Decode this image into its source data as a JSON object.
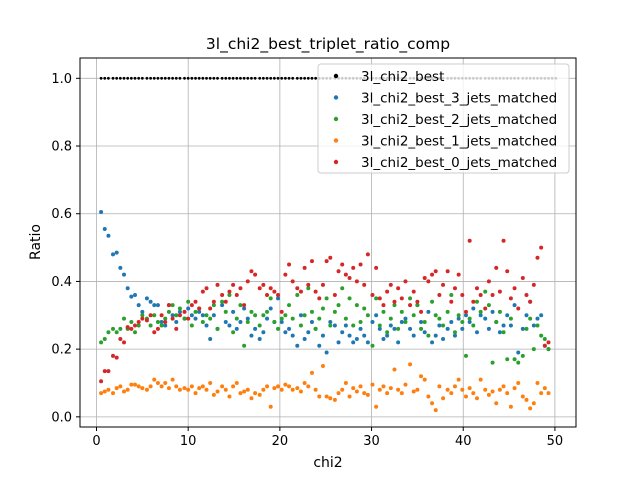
{
  "chart_data": {
    "type": "scatter",
    "title": "3l_chi2_best_triplet_ratio_comp",
    "xlabel": "chi2",
    "ylabel": "Ratio",
    "xlim": [
      -1.8,
      52.3
    ],
    "ylim": [
      -0.03,
      1.06
    ],
    "xticks": [
      "0",
      "10",
      "20",
      "30",
      "40",
      "50"
    ],
    "xtick_values": [
      0,
      10,
      20,
      30,
      40,
      50
    ],
    "yticks": [
      "0.0",
      "0.2",
      "0.4",
      "0.6",
      "0.8",
      "1.0"
    ],
    "ytick_values": [
      0.0,
      0.2,
      0.4,
      0.6,
      0.8,
      1.0
    ],
    "grid": true,
    "legend_position": "top-right",
    "x": [
      0.5,
      0.9,
      1.3,
      1.8,
      2.2,
      2.6,
      3.0,
      3.4,
      3.8,
      4.2,
      4.6,
      5.0,
      5.5,
      5.9,
      6.3,
      6.7,
      7.1,
      7.5,
      7.9,
      8.3,
      8.7,
      9.1,
      9.6,
      10.0,
      10.4,
      10.8,
      11.2,
      11.6,
      12.0,
      12.4,
      12.8,
      13.2,
      13.7,
      14.1,
      14.5,
      14.9,
      15.3,
      15.7,
      16.1,
      16.5,
      16.9,
      17.3,
      17.8,
      18.2,
      18.6,
      19.0,
      19.4,
      19.8,
      20.2,
      20.6,
      21.0,
      21.4,
      21.9,
      22.3,
      22.7,
      23.1,
      23.5,
      23.9,
      24.3,
      24.7,
      25.1,
      25.5,
      26.0,
      26.4,
      26.8,
      27.2,
      27.6,
      28.0,
      28.4,
      28.8,
      29.2,
      29.6,
      30.1,
      30.5,
      30.9,
      31.3,
      31.7,
      32.1,
      32.5,
      32.9,
      33.3,
      33.7,
      34.2,
      34.6,
      35.0,
      35.4,
      35.8,
      36.2,
      36.6,
      37.0,
      37.4,
      37.8,
      38.3,
      38.7,
      39.1,
      39.5,
      39.9,
      40.3,
      40.7,
      41.1,
      41.5,
      41.9,
      42.4,
      42.8,
      43.2,
      43.6,
      44.0,
      44.4,
      44.8,
      45.2,
      45.6,
      46.0,
      46.5,
      46.9,
      47.3,
      47.7,
      48.1,
      48.5,
      48.9,
      49.3,
      49.7,
      50.1
    ],
    "series": [
      {
        "name": "3l_chi2_best",
        "color": "#000000",
        "values": [
          1.0,
          1.0,
          1.0,
          1.0,
          1.0,
          1.0,
          1.0,
          1.0,
          1.0,
          1.0,
          1.0,
          1.0,
          1.0,
          1.0,
          1.0,
          1.0,
          1.0,
          1.0,
          1.0,
          1.0,
          1.0,
          1.0,
          1.0,
          1.0,
          1.0,
          1.0,
          1.0,
          1.0,
          1.0,
          1.0,
          1.0,
          1.0,
          1.0,
          1.0,
          1.0,
          1.0,
          1.0,
          1.0,
          1.0,
          1.0,
          1.0,
          1.0,
          1.0,
          1.0,
          1.0,
          1.0,
          1.0,
          1.0,
          1.0,
          1.0,
          1.0,
          1.0,
          1.0,
          1.0,
          1.0,
          1.0,
          1.0,
          1.0,
          1.0,
          1.0,
          1.0,
          1.0,
          1.0,
          1.0,
          1.0,
          1.0,
          1.0,
          1.0,
          1.0,
          1.0,
          1.0,
          1.0,
          1.0,
          1.0,
          1.0,
          1.0,
          1.0,
          1.0,
          1.0,
          1.0,
          1.0,
          1.0,
          1.0,
          1.0,
          1.0,
          1.0,
          1.0,
          1.0,
          1.0,
          1.0,
          1.0,
          1.0,
          1.0,
          1.0,
          1.0,
          1.0,
          1.0,
          1.0,
          1.0,
          1.0,
          1.0,
          1.0,
          1.0,
          1.0,
          1.0,
          1.0,
          1.0,
          1.0,
          1.0,
          1.0,
          1.0,
          1.0,
          1.0,
          1.0,
          1.0,
          1.0,
          1.0,
          1.0,
          1.0,
          1.0,
          1.0,
          1.0
        ]
      },
      {
        "name": "3l_chi2_best_3_jets_matched",
        "color": "#1f77b4",
        "values": [
          0.605,
          0.555,
          0.535,
          0.48,
          0.485,
          0.44,
          0.42,
          0.38,
          0.355,
          0.36,
          0.33,
          0.31,
          0.35,
          0.34,
          0.33,
          0.33,
          0.28,
          0.27,
          0.33,
          0.3,
          0.28,
          0.31,
          0.29,
          0.32,
          0.3,
          0.29,
          0.31,
          0.3,
          0.27,
          0.23,
          0.3,
          0.26,
          0.33,
          0.28,
          0.27,
          0.31,
          0.26,
          0.28,
          0.32,
          0.29,
          0.24,
          0.26,
          0.23,
          0.25,
          0.29,
          0.32,
          0.28,
          0.35,
          0.28,
          0.25,
          0.26,
          0.24,
          0.21,
          0.3,
          0.23,
          0.25,
          0.28,
          0.26,
          0.21,
          0.24,
          0.19,
          0.28,
          0.27,
          0.22,
          0.25,
          0.27,
          0.24,
          0.22,
          0.23,
          0.26,
          0.24,
          0.22,
          0.28,
          0.3,
          0.26,
          0.23,
          0.24,
          0.27,
          0.26,
          0.22,
          0.28,
          0.29,
          0.26,
          0.24,
          0.33,
          0.28,
          0.25,
          0.31,
          0.22,
          0.24,
          0.27,
          0.23,
          0.26,
          0.28,
          0.24,
          0.29,
          0.26,
          0.3,
          0.28,
          0.32,
          0.25,
          0.3,
          0.29,
          0.26,
          0.31,
          0.28,
          0.25,
          0.27,
          0.3,
          0.27,
          0.33,
          0.19,
          0.26,
          0.3,
          0.34,
          0.27,
          0.29,
          0.3,
          0.21,
          0.2
        ]
      },
      {
        "name": "3l_chi2_best_2_jets_matched",
        "color": "#2ca02c",
        "values": [
          0.22,
          0.23,
          0.25,
          0.26,
          0.25,
          0.26,
          0.29,
          0.26,
          0.28,
          0.25,
          0.27,
          0.3,
          0.29,
          0.27,
          0.3,
          0.28,
          0.27,
          0.29,
          0.31,
          0.33,
          0.3,
          0.32,
          0.29,
          0.34,
          0.27,
          0.31,
          0.32,
          0.28,
          0.3,
          0.29,
          0.33,
          0.26,
          0.34,
          0.31,
          0.36,
          0.25,
          0.29,
          0.33,
          0.21,
          0.28,
          0.31,
          0.3,
          0.27,
          0.3,
          0.31,
          0.35,
          0.28,
          0.26,
          0.29,
          0.3,
          0.33,
          0.29,
          0.36,
          0.27,
          0.3,
          0.38,
          0.31,
          0.26,
          0.29,
          0.32,
          0.35,
          0.27,
          0.31,
          0.33,
          0.38,
          0.29,
          0.35,
          0.27,
          0.33,
          0.28,
          0.32,
          0.3,
          0.21,
          0.35,
          0.27,
          0.31,
          0.25,
          0.29,
          0.33,
          0.26,
          0.31,
          0.28,
          0.35,
          0.3,
          0.33,
          0.26,
          0.28,
          0.24,
          0.34,
          0.3,
          0.29,
          0.27,
          0.31,
          0.36,
          0.25,
          0.3,
          0.28,
          0.18,
          0.29,
          0.27,
          0.34,
          0.31,
          0.37,
          0.33,
          0.16,
          0.28,
          0.31,
          0.25,
          0.17,
          0.29,
          0.17,
          0.16,
          0.18,
          0.26,
          0.29,
          0.2,
          0.27,
          0.24,
          0.23,
          0.2
        ]
      },
      {
        "name": "3l_chi2_best_1_jets_matched",
        "color": "#ff7f0e",
        "values": [
          0.07,
          0.075,
          0.08,
          0.07,
          0.085,
          0.09,
          0.075,
          0.08,
          0.095,
          0.095,
          0.09,
          0.085,
          0.08,
          0.09,
          0.11,
          0.1,
          0.09,
          0.1,
          0.085,
          0.11,
          0.09,
          0.08,
          0.085,
          0.08,
          0.09,
          0.07,
          0.085,
          0.09,
          0.08,
          0.1,
          0.065,
          0.075,
          0.09,
          0.08,
          0.06,
          0.09,
          0.1,
          0.07,
          0.075,
          0.08,
          0.055,
          0.07,
          0.065,
          0.08,
          0.09,
          0.03,
          0.085,
          0.09,
          0.08,
          0.095,
          0.09,
          0.08,
          0.085,
          0.075,
          0.1,
          0.09,
          0.13,
          0.08,
          0.06,
          0.15,
          0.06,
          0.055,
          0.05,
          0.07,
          0.08,
          0.1,
          0.06,
          0.085,
          0.075,
          0.09,
          0.07,
          0.065,
          0.095,
          0.03,
          0.08,
          0.09,
          0.07,
          0.085,
          0.14,
          0.08,
          0.07,
          0.095,
          0.155,
          0.075,
          0.08,
          0.12,
          0.11,
          0.06,
          0.04,
          0.02,
          0.09,
          0.055,
          0.08,
          0.07,
          0.09,
          0.11,
          0.08,
          0.06,
          0.085,
          0.07,
          0.055,
          0.11,
          0.08,
          0.065,
          0.075,
          0.04,
          0.08,
          0.09,
          0.07,
          0.03,
          0.085,
          0.1,
          0.06,
          0.05,
          0.025,
          0.04,
          0.1,
          0.07,
          0.085,
          0.07
        ]
      },
      {
        "name": "3l_chi2_best_0_jets_matched",
        "color": "#d62728",
        "values": [
          0.105,
          0.135,
          0.135,
          0.18,
          0.175,
          0.23,
          0.22,
          0.265,
          0.26,
          0.27,
          0.28,
          0.29,
          0.285,
          0.3,
          0.25,
          0.26,
          0.3,
          0.28,
          0.33,
          0.29,
          0.26,
          0.3,
          0.31,
          0.29,
          0.33,
          0.34,
          0.32,
          0.37,
          0.38,
          0.32,
          0.34,
          0.39,
          0.36,
          0.34,
          0.37,
          0.39,
          0.36,
          0.38,
          0.33,
          0.4,
          0.43,
          0.42,
          0.38,
          0.39,
          0.36,
          0.38,
          0.37,
          0.36,
          0.31,
          0.42,
          0.45,
          0.4,
          0.38,
          0.37,
          0.44,
          0.39,
          0.46,
          0.37,
          0.35,
          0.39,
          0.46,
          0.47,
          0.36,
          0.43,
          0.45,
          0.42,
          0.41,
          0.44,
          0.4,
          0.45,
          0.39,
          0.48,
          0.36,
          0.44,
          0.35,
          0.33,
          0.37,
          0.39,
          0.34,
          0.38,
          0.35,
          0.4,
          0.33,
          0.37,
          0.34,
          0.31,
          0.41,
          0.4,
          0.42,
          0.43,
          0.36,
          0.39,
          0.43,
          0.34,
          0.38,
          0.42,
          0.36,
          0.31,
          0.52,
          0.34,
          0.38,
          0.36,
          0.32,
          0.4,
          0.36,
          0.44,
          0.37,
          0.52,
          0.43,
          0.35,
          0.38,
          0.32,
          0.41,
          0.36,
          0.34,
          0.39,
          0.47,
          0.5,
          0.21,
          0.22
        ]
      }
    ]
  }
}
